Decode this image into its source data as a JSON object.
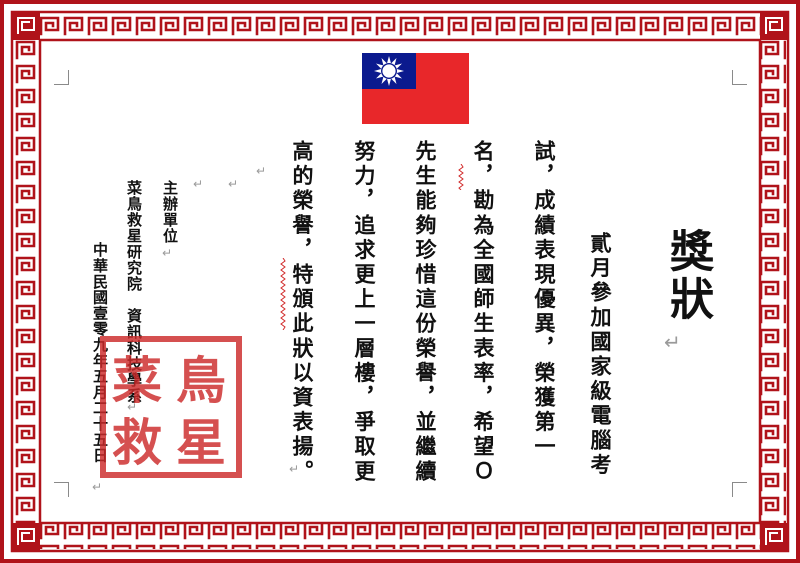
{
  "certificate": {
    "title": "獎狀",
    "lines": [
      "貳月參加國家級電腦考",
      "試，成績表現優異，榮獲第一",
      "名，勘為全國師生表率，希望Ｏ",
      "先生能夠珍惜這份榮譽，並繼續",
      "努力，追求更上一層樓，爭取更",
      "高的榮譽，特頒此狀以資表揚。"
    ]
  },
  "signature": {
    "organizer_label": "主辦單位",
    "organization": "菜鳥救星研究院　資訊科技學系",
    "date": "中華民國壹零九年五月二十五日"
  },
  "stamp": {
    "text": [
      "菜",
      "鳥",
      "救",
      "星"
    ]
  },
  "flag": {
    "name": "flag-of-taiwan"
  },
  "colors": {
    "border": "#b0131a",
    "stamp": "#cc2a2a",
    "flag_red": "#e8272a",
    "flag_blue": "#0b1a8e"
  },
  "marks": {
    "paragraph": "↵"
  }
}
